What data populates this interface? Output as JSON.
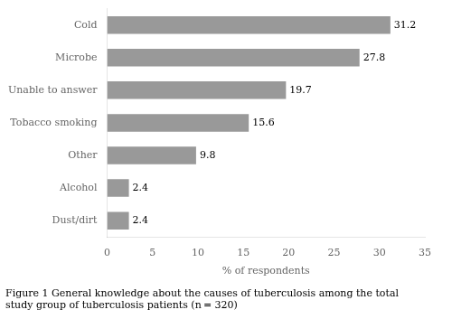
{
  "chart_data": {
    "type": "bar",
    "orientation": "horizontal",
    "title": [
      "Figure 1 General knowledge about the causes of tuberculosis among the total",
      "study group of tuberculosis patients (n = 320)"
    ],
    "categories": [
      "Cold",
      "Microbe",
      "Unable to answer",
      "Tobacco smoking",
      "Other",
      "Alcohol",
      "Dust/dirt"
    ],
    "values": [
      31.2,
      27.8,
      19.7,
      15.6,
      9.8,
      2.4,
      2.4
    ],
    "color": "#999999",
    "xlabel": "% of respondents",
    "xlim": [
      0,
      35
    ],
    "xticks": [
      0,
      5,
      10,
      15,
      20,
      25,
      30,
      35
    ],
    "data_labels": true,
    "grid": false
  }
}
